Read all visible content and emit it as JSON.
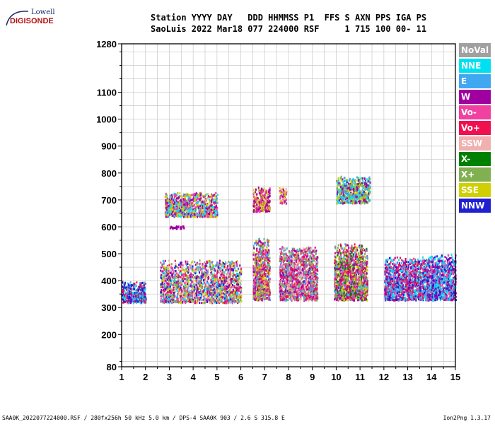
{
  "logo": {
    "top_text": "Lowell",
    "main_text": "DIGISONDE"
  },
  "header": {
    "line1": "Station YYYY DAY   DDD HHMMSS P1  FFS S AXN PPS IGA PS",
    "line2": "SaoLuis 2022 Mar18 077 224000 RSF     1 715 100 00- 11"
  },
  "legend": [
    {
      "label": "NoVal",
      "bg": "#a0a0a0",
      "fg": "#ffffff"
    },
    {
      "label": "NNE",
      "bg": "#00e0f0",
      "fg": "#ffffff"
    },
    {
      "label": "E",
      "bg": "#40a8f0",
      "fg": "#ffffff"
    },
    {
      "label": "W",
      "bg": "#a000a0",
      "fg": "#ffffff"
    },
    {
      "label": "Vo-",
      "bg": "#f040a0",
      "fg": "#ffffff"
    },
    {
      "label": "Vo+",
      "bg": "#f01050",
      "fg": "#ffffff"
    },
    {
      "label": "SSW",
      "bg": "#f0b0b0",
      "fg": "#ffffff"
    },
    {
      "label": "X-",
      "bg": "#008000",
      "fg": "#ffffff"
    },
    {
      "label": "X+",
      "bg": "#80b050",
      "fg": "#ffffff"
    },
    {
      "label": "SSE",
      "bg": "#d0d000",
      "fg": "#ffffff"
    },
    {
      "label": "NNW",
      "bg": "#2020d0",
      "fg": "#ffffff"
    }
  ],
  "footer": {
    "left": "SAA0K_2022077224000.RSF / 280fx256h 50 kHz 5.0 km / DPS-4 SAA0K 903 / 2.6 S 315.8 E",
    "right": "Ion2Png 1.3.17"
  },
  "chart_data": {
    "type": "scatter",
    "title": "",
    "xlabel": "",
    "ylabel": "",
    "xlim": [
      1,
      15
    ],
    "ylim": [
      80,
      1280
    ],
    "xticks": [
      1,
      2,
      3,
      4,
      5,
      6,
      7,
      8,
      9,
      10,
      11,
      12,
      13,
      14,
      15
    ],
    "yticks": [
      80,
      200,
      300,
      400,
      500,
      600,
      700,
      800,
      900,
      1000,
      1100,
      1280
    ],
    "grid": true,
    "legend_position": "right",
    "clusters": [
      {
        "x": [
          1.0,
          2.0
        ],
        "y": [
          320,
          400
        ],
        "colors": [
          "NNW",
          "W",
          "Vo+",
          "E",
          "NNE"
        ]
      },
      {
        "x": [
          2.6,
          6.0
        ],
        "y": [
          320,
          480
        ],
        "colors": [
          "Vo+",
          "Vo-",
          "W",
          "NNW",
          "E",
          "NNE",
          "X+",
          "SSE",
          "SSW"
        ]
      },
      {
        "x": [
          2.8,
          5.0
        ],
        "y": [
          640,
          730
        ],
        "colors": [
          "W",
          "Vo-",
          "SSE",
          "NNE"
        ]
      },
      {
        "x": [
          3.0,
          3.6
        ],
        "y": [
          596,
          606
        ],
        "colors": [
          "W"
        ]
      },
      {
        "x": [
          6.5,
          7.2
        ],
        "y": [
          330,
          560
        ],
        "colors": [
          "Vo+",
          "Vo-",
          "W",
          "SSE",
          "E",
          "X+"
        ]
      },
      {
        "x": [
          6.5,
          7.2
        ],
        "y": [
          660,
          750
        ],
        "colors": [
          "W",
          "Vo-",
          "SSE"
        ]
      },
      {
        "x": [
          7.6,
          9.2
        ],
        "y": [
          330,
          530
        ],
        "colors": [
          "Vo+",
          "Vo-",
          "W",
          "E",
          "SSW",
          "X+"
        ]
      },
      {
        "x": [
          7.6,
          7.9
        ],
        "y": [
          690,
          750
        ],
        "colors": [
          "W",
          "Vo-",
          "SSE",
          "SSW"
        ]
      },
      {
        "x": [
          9.9,
          11.3
        ],
        "y": [
          330,
          540
        ],
        "colors": [
          "Vo+",
          "Vo-",
          "W",
          "SSE",
          "E",
          "X-",
          "X+"
        ]
      },
      {
        "x": [
          10.0,
          11.4
        ],
        "y": [
          690,
          790
        ],
        "colors": [
          "NNE",
          "E",
          "W",
          "X+",
          "SSE"
        ]
      },
      {
        "x": [
          12.0,
          13.8
        ],
        "y": [
          330,
          490
        ],
        "colors": [
          "NNE",
          "E",
          "Vo+",
          "Vo-",
          "W",
          "NNW"
        ]
      },
      {
        "x": [
          13.8,
          15.0
        ],
        "y": [
          330,
          500
        ],
        "colors": [
          "NNE",
          "E",
          "W",
          "Vo-",
          "NNW"
        ]
      }
    ]
  }
}
